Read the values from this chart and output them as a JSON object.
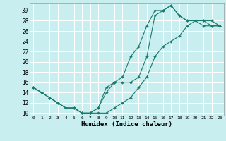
{
  "xlabel": "Humidex (Indice chaleur)",
  "bg_color": "#c8eef0",
  "line_color": "#1a7a6e",
  "grid_color": "#ffffff",
  "xlim": [
    -0.5,
    23.5
  ],
  "ylim": [
    9.5,
    31.5
  ],
  "xticks": [
    0,
    1,
    2,
    3,
    4,
    5,
    6,
    7,
    8,
    9,
    10,
    11,
    12,
    13,
    14,
    15,
    16,
    17,
    18,
    19,
    20,
    21,
    22,
    23
  ],
  "yticks": [
    10,
    12,
    14,
    16,
    18,
    20,
    22,
    24,
    26,
    28,
    30
  ],
  "line1_x": [
    0,
    1,
    2,
    3,
    4,
    5,
    6,
    7,
    8,
    9,
    10,
    11,
    12,
    13,
    14,
    15,
    16,
    17,
    18,
    19,
    20,
    21,
    22,
    23
  ],
  "line1_y": [
    15,
    14,
    13,
    12,
    11,
    11,
    10,
    10,
    10,
    10,
    11,
    12,
    13,
    15,
    17,
    21,
    23,
    24,
    25,
    27,
    28,
    28,
    28,
    27
  ],
  "line2_x": [
    0,
    1,
    2,
    3,
    4,
    5,
    6,
    7,
    8,
    9,
    10,
    11,
    12,
    13,
    14,
    15,
    16,
    17,
    18,
    19,
    20,
    21,
    22,
    23
  ],
  "line2_y": [
    15,
    14,
    13,
    12,
    11,
    11,
    10,
    10,
    11,
    14,
    16,
    17,
    21,
    23,
    27,
    30,
    30,
    31,
    29,
    28,
    28,
    28,
    27,
    27
  ],
  "line3_x": [
    0,
    1,
    2,
    3,
    4,
    5,
    6,
    7,
    8,
    9,
    10,
    11,
    12,
    13,
    14,
    15,
    16,
    17,
    18,
    19,
    20,
    21,
    22,
    23
  ],
  "line3_y": [
    15,
    14,
    13,
    12,
    11,
    11,
    10,
    10,
    11,
    15,
    16,
    16,
    16,
    17,
    21,
    29,
    30,
    31,
    29,
    28,
    28,
    27,
    27,
    27
  ]
}
